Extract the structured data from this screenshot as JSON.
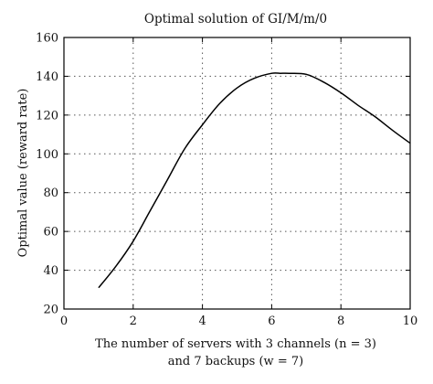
{
  "chart_data": {
    "type": "line",
    "title": "Optimal solution of GI/M/m/0",
    "xlabel_line1": "The number of servers with 3 channels (n = 3)",
    "xlabel_line2": "and 7 backups (w = 7)",
    "ylabel": "Optimal value (reward rate)",
    "xlim": [
      0,
      10
    ],
    "ylim": [
      20,
      160
    ],
    "xticks": [
      0,
      2,
      4,
      6,
      8,
      10
    ],
    "yticks": [
      20,
      40,
      60,
      80,
      100,
      120,
      140,
      160
    ],
    "grid": true,
    "series": [
      {
        "x": [
          1.0,
          1.5,
          2.0,
          2.5,
          3.0,
          3.5,
          4.0,
          4.5,
          5.0,
          5.5,
          6.0,
          6.25,
          6.5,
          7.0,
          7.5,
          8.0,
          8.5,
          9.0,
          9.5,
          10.0
        ],
        "y": [
          31,
          42,
          55,
          71,
          87,
          103,
          115,
          126,
          134,
          139,
          141.5,
          141.5,
          141.5,
          141,
          137,
          131.5,
          125,
          119,
          112,
          105.5
        ]
      }
    ]
  }
}
